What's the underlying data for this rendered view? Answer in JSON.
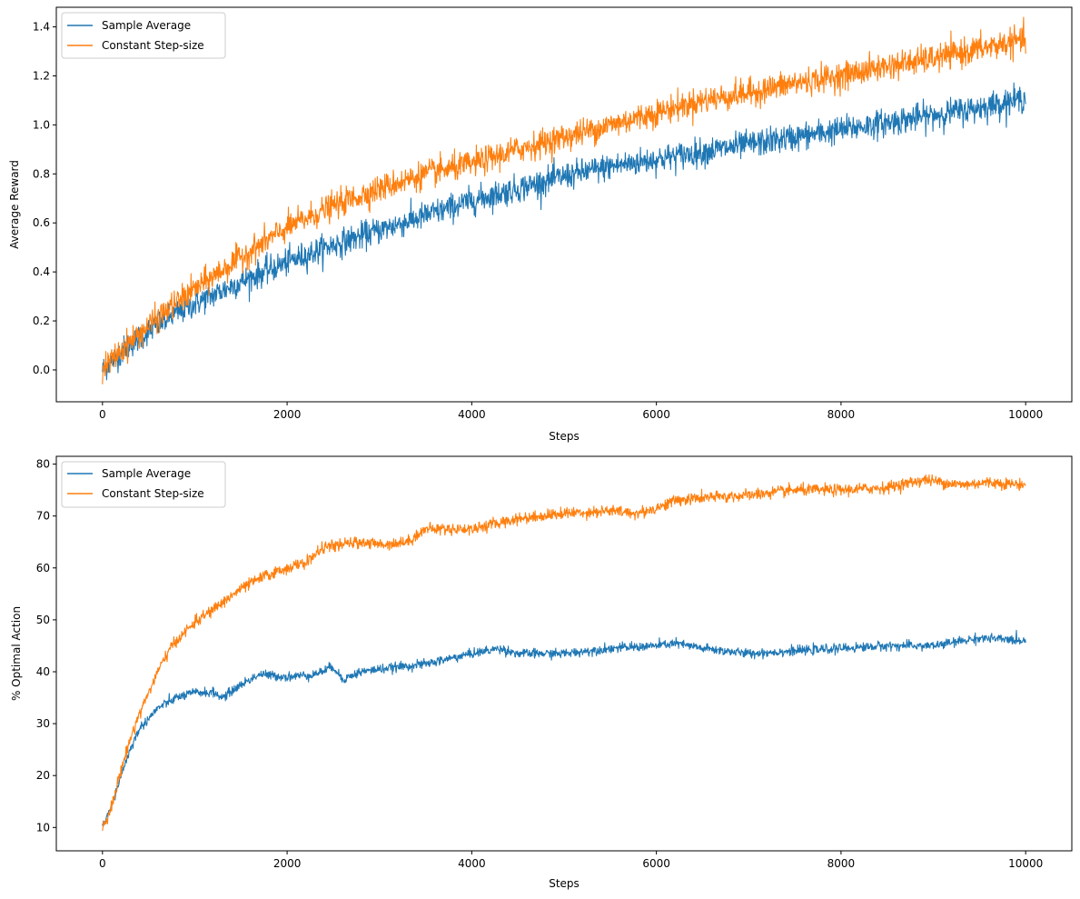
{
  "chart_data": [
    {
      "type": "line",
      "title": "",
      "xlabel": "Steps",
      "ylabel": "Average Reward",
      "xlim": [
        -500,
        10500
      ],
      "ylim": [
        -0.13,
        1.48
      ],
      "xticks": [
        0,
        2000,
        4000,
        6000,
        8000,
        10000
      ],
      "xtick_labels": [
        "0",
        "2000",
        "4000",
        "6000",
        "8000",
        "10000"
      ],
      "yticks": [
        0.0,
        0.2,
        0.4,
        0.6,
        0.8,
        1.0,
        1.2,
        1.4
      ],
      "ytick_labels": [
        "0.0",
        "0.2",
        "0.4",
        "0.6",
        "0.8",
        "1.0",
        "1.2",
        "1.4"
      ],
      "grid": false,
      "legend": "upper-left",
      "noise": [
        0.05,
        0.05
      ],
      "series": [
        {
          "name": "Sample Average",
          "color": "#1f77b4",
          "x": [
            0,
            250,
            500,
            750,
            1000,
            1500,
            2000,
            2500,
            3000,
            3500,
            4000,
            4500,
            5000,
            5500,
            6000,
            6500,
            7000,
            7500,
            8000,
            8500,
            9000,
            9500,
            10000
          ],
          "y": [
            0.0,
            0.09,
            0.16,
            0.22,
            0.27,
            0.36,
            0.44,
            0.51,
            0.57,
            0.63,
            0.69,
            0.74,
            0.79,
            0.83,
            0.86,
            0.89,
            0.92,
            0.95,
            0.98,
            1.01,
            1.04,
            1.07,
            1.11
          ]
        },
        {
          "name": "Constant Step-size",
          "color": "#ff7f0e",
          "x": [
            0,
            250,
            500,
            750,
            1000,
            1500,
            2000,
            2500,
            3000,
            3500,
            4000,
            4500,
            5000,
            5500,
            6000,
            6500,
            7000,
            7500,
            8000,
            8500,
            9000,
            9500,
            10000
          ],
          "y": [
            0.0,
            0.1,
            0.18,
            0.26,
            0.33,
            0.46,
            0.58,
            0.67,
            0.74,
            0.8,
            0.84,
            0.9,
            0.95,
            1.0,
            1.05,
            1.1,
            1.13,
            1.17,
            1.2,
            1.24,
            1.27,
            1.31,
            1.35
          ]
        }
      ]
    },
    {
      "type": "line",
      "title": "",
      "xlabel": "Steps",
      "ylabel": "% Optimal Action",
      "xlim": [
        -500,
        10500
      ],
      "ylim": [
        5.5,
        81.5
      ],
      "xticks": [
        0,
        2000,
        4000,
        6000,
        8000,
        10000
      ],
      "xtick_labels": [
        "0",
        "2000",
        "4000",
        "6000",
        "8000",
        "10000"
      ],
      "yticks": [
        10,
        20,
        30,
        40,
        50,
        60,
        70,
        80
      ],
      "ytick_labels": [
        "10",
        "20",
        "30",
        "40",
        "50",
        "60",
        "70",
        "80"
      ],
      "grid": false,
      "legend": "upper-left",
      "noise": [
        0.8,
        1.0
      ],
      "series": [
        {
          "name": "Sample Average",
          "color": "#1f77b4",
          "x": [
            0,
            100,
            200,
            300,
            400,
            500,
            600,
            700,
            800,
            1000,
            1200,
            1300,
            1500,
            1700,
            2000,
            2300,
            2500,
            2600,
            2800,
            3000,
            3500,
            4000,
            4300,
            4500,
            5000,
            5500,
            6000,
            6200,
            6500,
            7000,
            7500,
            8000,
            8500,
            9000,
            9500,
            10000
          ],
          "y": [
            10,
            14,
            20,
            25,
            29,
            31,
            33,
            34,
            35,
            36,
            36,
            35,
            37.5,
            39.5,
            39,
            39.5,
            41,
            38.5,
            40,
            40.5,
            41.5,
            43.5,
            44.5,
            43.5,
            43.5,
            44.5,
            45,
            45.5,
            44.5,
            43.5,
            44,
            44.5,
            45,
            45,
            46.5,
            46
          ]
        },
        {
          "name": "Constant Step-size",
          "color": "#ff7f0e",
          "x": [
            0,
            100,
            200,
            300,
            400,
            500,
            600,
            700,
            800,
            1000,
            1200,
            1500,
            1700,
            2000,
            2200,
            2400,
            2800,
            3000,
            3300,
            3500,
            4000,
            4500,
            5000,
            5500,
            5800,
            6000,
            6200,
            6500,
            7000,
            7500,
            8000,
            8500,
            8900,
            9300,
            9600,
            10000
          ],
          "y": [
            10,
            14,
            21,
            27,
            32,
            36,
            40,
            43.5,
            46,
            49.5,
            52,
            56,
            58,
            60,
            61,
            64,
            65,
            64.5,
            65,
            67.5,
            67.5,
            69.5,
            70.5,
            71,
            70.5,
            71.5,
            73,
            73.5,
            74,
            75,
            75,
            75.5,
            77,
            76,
            76.5,
            76
          ]
        }
      ]
    }
  ]
}
